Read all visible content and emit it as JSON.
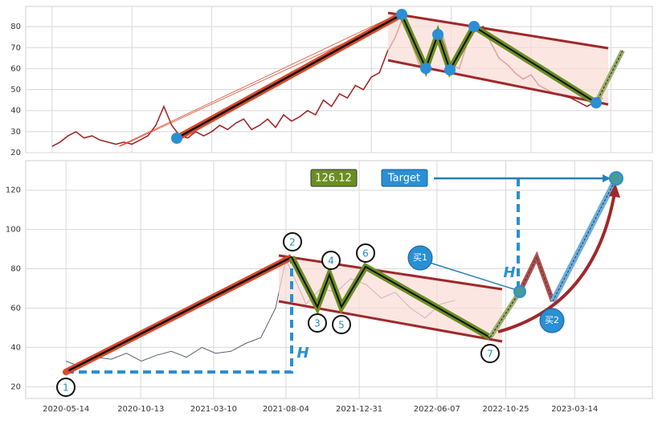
{
  "chart_data": [
    {
      "type": "line",
      "color": "#a0282a",
      "values": [
        23,
        25,
        28,
        30,
        27,
        28,
        26,
        25,
        24,
        25,
        24,
        26,
        28,
        33,
        42,
        33,
        28,
        27,
        30,
        28,
        30,
        33,
        31,
        34,
        36,
        31,
        33,
        36,
        32,
        38,
        35,
        37,
        40,
        38,
        45,
        42,
        48,
        46,
        52,
        50,
        56,
        58,
        68,
        75,
        85,
        72,
        62,
        60,
        70,
        75,
        62,
        60,
        72,
        78,
        80,
        72,
        65,
        62,
        58,
        55,
        57,
        52,
        50,
        48,
        47,
        46,
        44,
        42,
        44,
        46
      ],
      "xlim": [
        -3.3,
        75.2
      ],
      "xticks": [
        0,
        10,
        20,
        30,
        40,
        50,
        60,
        70
      ],
      "ylim": [
        20,
        89.6
      ],
      "yticks": [
        20,
        30,
        40,
        50,
        60,
        70,
        80
      ],
      "grid": true
    },
    {
      "type": "line",
      "color": "#5a6070",
      "x": [
        "2020-05-14",
        "2020-06-14",
        "2020-07-14",
        "2020-08-14",
        "2020-09-14",
        "2020-10-14",
        "2020-11-14",
        "2020-12-14",
        "2021-01-14",
        "2021-02-14",
        "2021-03-14",
        "2021-04-14",
        "2021-05-14",
        "2021-06-14",
        "2021-07-14",
        "2021-08-04",
        "2021-09-14",
        "2021-10-14",
        "2021-11-14",
        "2021-12-14",
        "2022-01-14",
        "2022-02-14",
        "2022-03-14",
        "2022-04-14",
        "2022-05-14",
        "2022-06-14",
        "2022-07-14"
      ],
      "values": [
        33,
        30,
        35,
        34,
        37,
        33,
        36,
        38,
        35,
        40,
        37,
        38,
        42,
        45,
        60,
        85,
        62,
        70,
        68,
        75,
        72,
        65,
        68,
        60,
        55,
        62,
        64
      ],
      "xlim": [
        "2020-02-22",
        "2023-08-19"
      ],
      "xticks": [
        "2020-05-14",
        "2020-10-13",
        "2021-03-10",
        "2021-08-04",
        "2021-12-31",
        "2022-06-07",
        "2022-10-25",
        "2023-03-14"
      ],
      "ylim": [
        14,
        135
      ],
      "yticks": [
        20,
        40,
        60,
        80,
        100,
        120
      ],
      "grid": true,
      "annotations": [
        "1",
        "2",
        "3",
        "4",
        "5",
        "6",
        "7",
        "H",
        "H",
        "126.12",
        "Target",
        "买1",
        "买2"
      ]
    }
  ]
}
